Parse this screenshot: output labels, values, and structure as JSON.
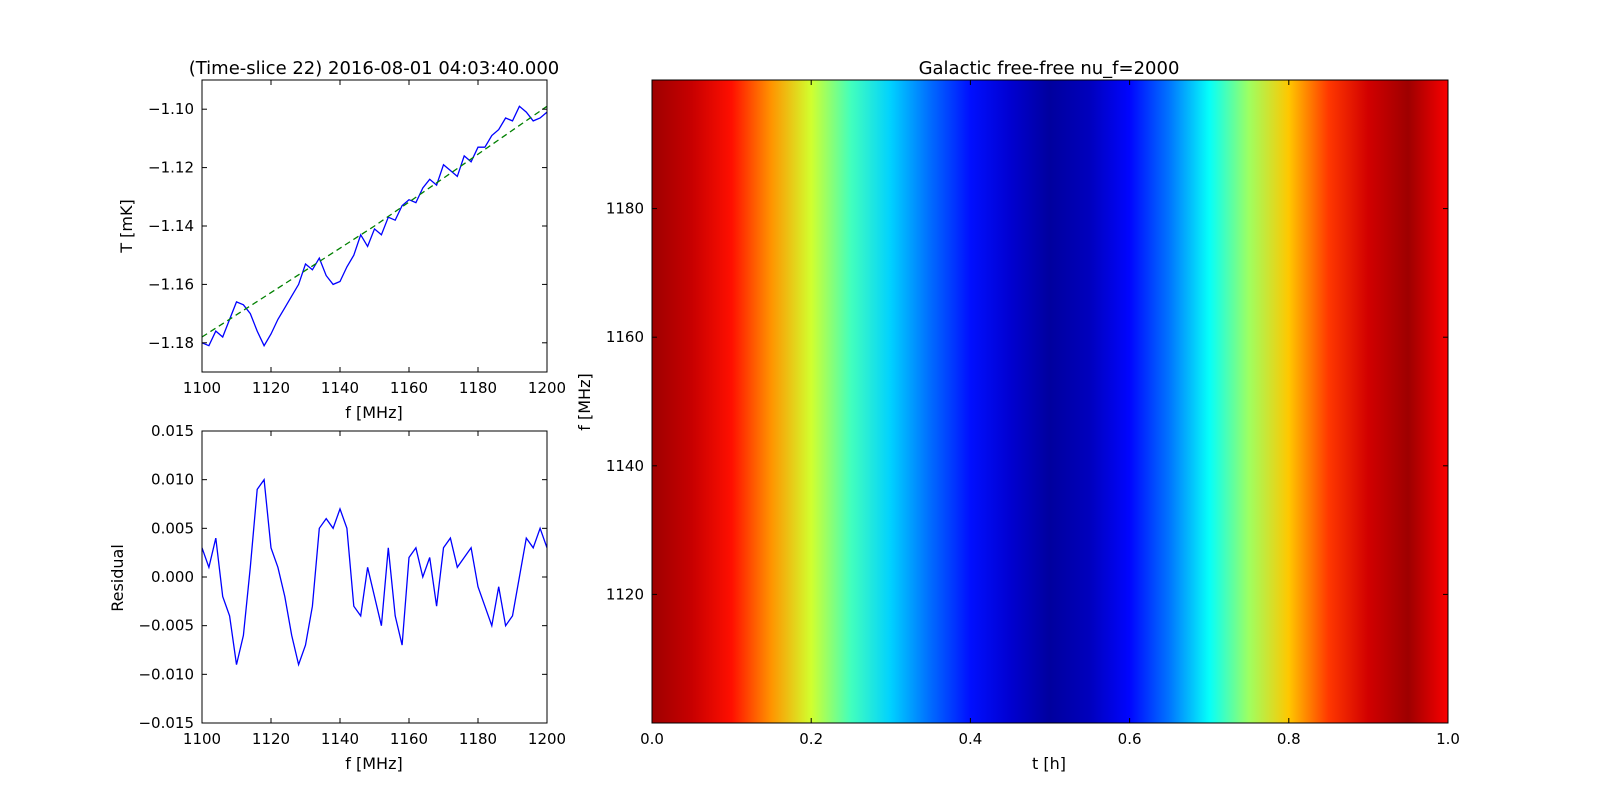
{
  "chart_data": [
    {
      "type": "line",
      "title": "(Time-slice 22) 2016-08-01 04:03:40.000",
      "xlabel": "f [MHz]",
      "ylabel": "T [mK]",
      "xlim": [
        1100,
        1200
      ],
      "ylim": [
        -1.19,
        -1.09
      ],
      "xticks": [
        "1100",
        "1120",
        "1140",
        "1160",
        "1180",
        "1200"
      ],
      "yticks": [
        "−1.18",
        "−1.16",
        "−1.14",
        "−1.12",
        "−1.10"
      ],
      "grid": false,
      "series": [
        {
          "style": "solid",
          "color": "#0000ff",
          "x": [
            1100,
            1102,
            1104,
            1106,
            1108,
            1110,
            1112,
            1114,
            1116,
            1118,
            1120,
            1122,
            1124,
            1126,
            1128,
            1130,
            1132,
            1134,
            1136,
            1138,
            1140,
            1142,
            1144,
            1146,
            1148,
            1150,
            1152,
            1154,
            1156,
            1158,
            1160,
            1162,
            1164,
            1166,
            1168,
            1170,
            1172,
            1174,
            1176,
            1178,
            1180,
            1182,
            1184,
            1186,
            1188,
            1190,
            1192,
            1194,
            1196,
            1198,
            1200
          ],
          "y": [
            -1.18,
            -1.181,
            -1.176,
            -1.178,
            -1.172,
            -1.166,
            -1.167,
            -1.17,
            -1.176,
            -1.181,
            -1.177,
            -1.172,
            -1.168,
            -1.164,
            -1.16,
            -1.153,
            -1.155,
            -1.151,
            -1.157,
            -1.16,
            -1.159,
            -1.154,
            -1.15,
            -1.143,
            -1.147,
            -1.141,
            -1.143,
            -1.137,
            -1.138,
            -1.133,
            -1.131,
            -1.132,
            -1.127,
            -1.124,
            -1.126,
            -1.119,
            -1.121,
            -1.123,
            -1.116,
            -1.118,
            -1.113,
            -1.113,
            -1.109,
            -1.107,
            -1.103,
            -1.104,
            -1.099,
            -1.101,
            -1.104,
            -1.103,
            -1.101
          ]
        },
        {
          "style": "dashed",
          "color": "#008000",
          "x": [
            1100,
            1150,
            1200
          ],
          "y": [
            -1.178,
            -1.14,
            -1.099
          ]
        }
      ]
    },
    {
      "type": "line",
      "title": "",
      "xlabel": "f [MHz]",
      "ylabel": "Residual",
      "xlim": [
        1100,
        1200
      ],
      "ylim": [
        -0.015,
        0.015
      ],
      "xticks": [
        "1100",
        "1120",
        "1140",
        "1160",
        "1180",
        "1200"
      ],
      "yticks": [
        "−0.015",
        "−0.010",
        "−0.005",
        "0.000",
        "0.005",
        "0.010",
        "0.015"
      ],
      "grid": false,
      "series": [
        {
          "style": "solid",
          "color": "#0000ff",
          "x": [
            1100,
            1102,
            1104,
            1106,
            1108,
            1110,
            1112,
            1114,
            1116,
            1118,
            1120,
            1122,
            1124,
            1126,
            1128,
            1130,
            1132,
            1134,
            1136,
            1138,
            1140,
            1142,
            1144,
            1146,
            1148,
            1150,
            1152,
            1154,
            1156,
            1158,
            1160,
            1162,
            1164,
            1166,
            1168,
            1170,
            1172,
            1174,
            1176,
            1178,
            1180,
            1182,
            1184,
            1186,
            1188,
            1190,
            1192,
            1194,
            1196,
            1198,
            1200
          ],
          "y": [
            0.003,
            0.001,
            0.004,
            -0.002,
            -0.004,
            -0.009,
            -0.006,
            0.001,
            0.009,
            0.01,
            0.003,
            0.001,
            -0.002,
            -0.006,
            -0.009,
            -0.007,
            -0.003,
            0.005,
            0.006,
            0.005,
            0.007,
            0.005,
            -0.003,
            -0.004,
            0.001,
            -0.002,
            -0.005,
            0.003,
            -0.004,
            -0.007,
            0.002,
            0.003,
            0.0,
            0.002,
            -0.003,
            0.003,
            0.004,
            0.001,
            0.002,
            0.003,
            -0.001,
            -0.003,
            -0.005,
            -0.001,
            -0.005,
            -0.004,
            0.0,
            0.004,
            0.003,
            0.005,
            0.003
          ]
        }
      ]
    },
    {
      "type": "heatmap",
      "title": "Galactic free-free nu_f=2000",
      "xlabel": "t [h]",
      "ylabel": "f [MHz]",
      "xlim": [
        0.0,
        1.0
      ],
      "ylim": [
        1100,
        1200
      ],
      "xticks": [
        "0.0",
        "0.2",
        "0.4",
        "0.6",
        "0.8",
        "1.0"
      ],
      "yticks": [
        "1120",
        "1140",
        "1160",
        "1180"
      ],
      "colormap": "jet",
      "x_profile": [
        0.0,
        0.05,
        0.1,
        0.15,
        0.2,
        0.25,
        0.3,
        0.35,
        0.4,
        0.45,
        0.5,
        0.55,
        0.6,
        0.65,
        0.7,
        0.75,
        0.8,
        0.85,
        0.9,
        0.95,
        1.0
      ],
      "normalized_value": [
        0.97,
        0.93,
        0.86,
        0.73,
        0.58,
        0.44,
        0.33,
        0.23,
        0.14,
        0.08,
        0.03,
        0.06,
        0.13,
        0.24,
        0.38,
        0.53,
        0.68,
        0.82,
        0.92,
        0.97,
        0.88
      ]
    }
  ]
}
